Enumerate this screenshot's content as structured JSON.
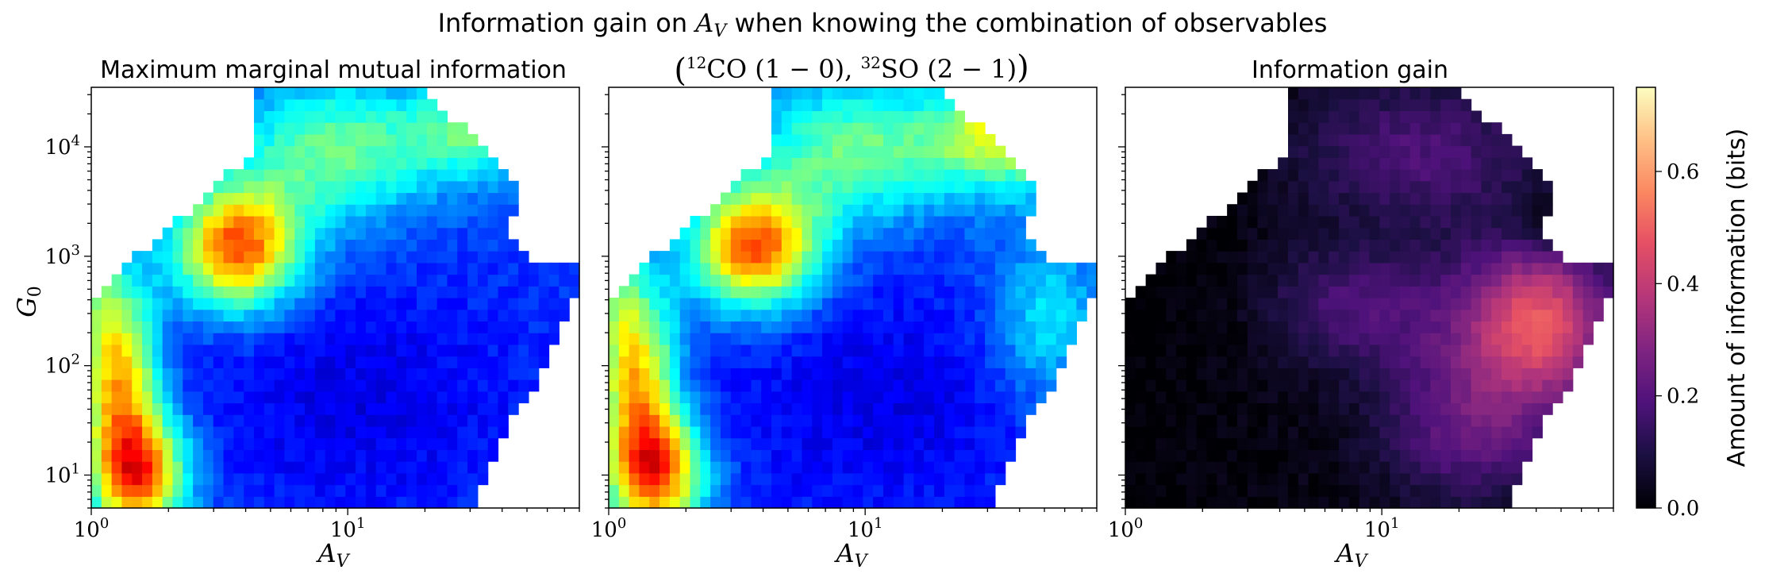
{
  "figure": {
    "suptitle_prefix": "Information gain on ",
    "suptitle_var": "A",
    "suptitle_var_sub": "V",
    "suptitle_suffix": " when knowing the combination of observables"
  },
  "chart_data": [
    {
      "type": "heatmap",
      "title": "Maximum marginal mutual information",
      "xlabel": "A_V",
      "ylabel": "G_0",
      "xscale": "log",
      "yscale": "log",
      "xlim": [
        1,
        80
      ],
      "ylim": [
        5,
        35000
      ],
      "colormap": "jet",
      "grid": false
    },
    {
      "type": "heatmap",
      "title": "(12CO (1-0), 32SO (2-1))",
      "xlabel": "A_V",
      "xscale": "log",
      "yscale": "log",
      "xlim": [
        1,
        80
      ],
      "ylim": [
        5,
        35000
      ],
      "colormap": "jet",
      "grid": false
    },
    {
      "type": "heatmap",
      "title": "Information gain",
      "xlabel": "A_V",
      "xscale": "log",
      "yscale": "log",
      "xlim": [
        1,
        80
      ],
      "ylim": [
        5,
        35000
      ],
      "colormap": "magma",
      "colorbar": {
        "label": "Amount of information (bits)",
        "range": [
          0,
          0.75
        ],
        "ticks": [
          "0.0",
          "0.2",
          "0.4",
          "0.6"
        ]
      },
      "grid": false
    }
  ],
  "axes": {
    "x_ticks": [
      "0",
      "1"
    ],
    "y_ticks": [
      "1",
      "2",
      "3",
      "4"
    ],
    "tick_base": "10"
  },
  "panel2_title_parts": {
    "iso1": "12",
    "mol1": "CO",
    "trans1": "(1 − 0)",
    "iso2": "32",
    "mol2": "SO",
    "trans2": "(2 − 1)"
  }
}
